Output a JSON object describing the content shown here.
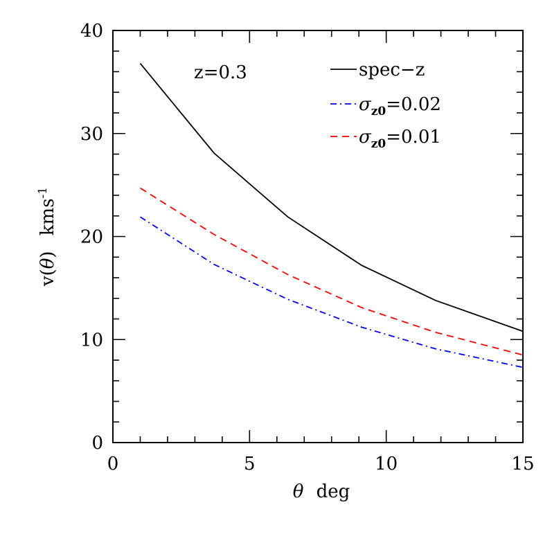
{
  "chart_data": {
    "type": "line",
    "title": "",
    "xlabel": {
      "symbol": "θ",
      "text": "deg"
    },
    "ylabel": {
      "prefix": "v",
      "symbol": "θ",
      "unit": "kms",
      "unit_exp": "-1"
    },
    "xlim": [
      0,
      15
    ],
    "ylim": [
      0,
      40
    ],
    "x_ticks": [
      0,
      5,
      10,
      15
    ],
    "y_ticks": [
      0,
      10,
      20,
      30,
      40
    ],
    "x_tick_labels": [
      "0",
      "5",
      "10",
      "15"
    ],
    "y_tick_labels": [
      "0",
      "10",
      "20",
      "30",
      "40"
    ],
    "grid": false,
    "legend_placement": "top-right",
    "annotation": "z=0.3",
    "series": [
      {
        "name": "spec−z",
        "legend_parts": {
          "text": "spec−z"
        },
        "color": "#000000",
        "dash": "solid",
        "x": [
          1.0,
          3.7,
          6.4,
          9.1,
          11.8,
          15.0
        ],
        "y": [
          36.8,
          28.1,
          21.9,
          17.2,
          13.8,
          10.8
        ]
      },
      {
        "name": "σz0=0.02",
        "legend_parts": {
          "symbol": "σ",
          "sub": "z0",
          "text": "=0.02"
        },
        "color": "#0000ff",
        "dash": "dashdot",
        "x": [
          1.0,
          3.7,
          6.4,
          9.1,
          11.8,
          15.0
        ],
        "y": [
          21.9,
          17.3,
          13.9,
          11.2,
          9.1,
          7.3
        ]
      },
      {
        "name": "σz0=0.01",
        "legend_parts": {
          "symbol": "σ",
          "sub": "z0",
          "text": "=0.01"
        },
        "color": "#ff0000",
        "dash": "dashed",
        "x": [
          1.0,
          3.7,
          6.4,
          9.1,
          11.8,
          15.0
        ],
        "y": [
          24.7,
          20.2,
          16.3,
          13.1,
          10.7,
          8.5
        ]
      }
    ]
  }
}
